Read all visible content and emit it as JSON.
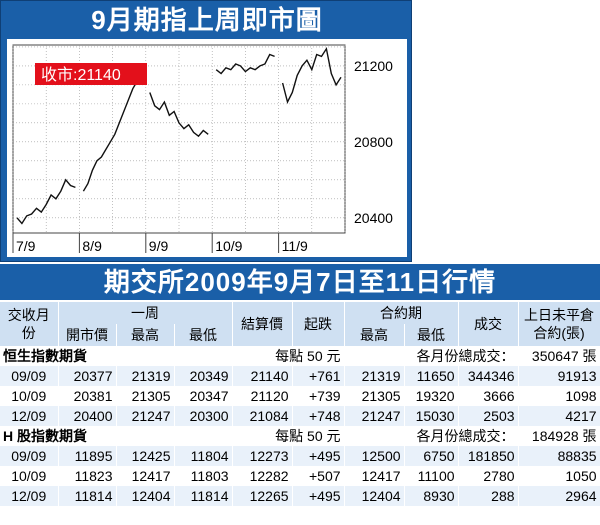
{
  "chart": {
    "title": "9月期指上周即市圖",
    "close_label": "收市:21140"
  },
  "chart_data": {
    "type": "line",
    "title": "9月期指上周即市圖",
    "x_tick_labels": [
      "7/9",
      "8/9",
      "9/9",
      "10/9",
      "11/9"
    ],
    "y_ticks": [
      20400,
      20800,
      21200
    ],
    "ylim": [
      20320,
      21310
    ],
    "annotation": "收市:21140",
    "sessions": [
      {
        "label": "7/9",
        "values": [
          20400,
          20370,
          20410,
          20420,
          20450,
          20430,
          20470,
          20520,
          20500,
          20540,
          20600,
          20570,
          20560
        ]
      },
      {
        "label": "8/9",
        "values": [
          20540,
          20580,
          20650,
          20700,
          20720,
          20760,
          20800,
          20840,
          20900,
          20960,
          21020,
          21080,
          21120,
          21180
        ]
      },
      {
        "label": "9/9",
        "values": [
          21060,
          20990,
          20970,
          21010,
          20940,
          20960,
          20900,
          20870,
          20890,
          20850,
          20830,
          20860,
          20840
        ]
      },
      {
        "label": "10/9",
        "values": [
          21180,
          21160,
          21190,
          21180,
          21210,
          21200,
          21170,
          21190,
          21180,
          21200,
          21210,
          21260,
          21250
        ]
      },
      {
        "label": "11/9",
        "values": [
          21110,
          21010,
          21060,
          21150,
          21200,
          21230,
          21180,
          21260,
          21250,
          21290,
          21160,
          21100,
          21140
        ]
      }
    ]
  },
  "table": {
    "title": "期交所2009年9月7日至11日行情",
    "headers_top": {
      "month": "交收月份",
      "week": "一周",
      "settle": "結算價",
      "change": "起跌",
      "oi_group": "合約期",
      "volume": "成交",
      "prev_oi": "上日未平倉合約(張)"
    },
    "headers_bottom": {
      "open": "開市價",
      "high": "最高",
      "low": "最低",
      "oi_high": "最高",
      "oi_low": "最低"
    },
    "sections": [
      {
        "name": "恒生指數期貨",
        "point_value": "每點 50 元",
        "total_label": "各月份總成交：",
        "total": "350647 張",
        "rows": [
          {
            "month": "09/09",
            "open": "20377",
            "high": "21319",
            "low": "20349",
            "settle": "21140",
            "change": "+761",
            "c_high": "21319",
            "c_low": "11650",
            "volume": "344346",
            "oi": "91913"
          },
          {
            "month": "10/09",
            "open": "20381",
            "high": "21305",
            "low": "20347",
            "settle": "21120",
            "change": "+739",
            "c_high": "21305",
            "c_low": "19320",
            "volume": "3666",
            "oi": "1098"
          },
          {
            "month": "12/09",
            "open": "20400",
            "high": "21247",
            "low": "20300",
            "settle": "21084",
            "change": "+748",
            "c_high": "21247",
            "c_low": "15030",
            "volume": "2503",
            "oi": "4217"
          }
        ]
      },
      {
        "name": "H 股指數期貨",
        "point_value": "每點 50 元",
        "total_label": "各月份總成交：",
        "total": "184928 張",
        "rows": [
          {
            "month": "09/09",
            "open": "11895",
            "high": "12425",
            "low": "11804",
            "settle": "12273",
            "change": "+495",
            "c_high": "12500",
            "c_low": "6750",
            "volume": "181850",
            "oi": "88835"
          },
          {
            "month": "10/09",
            "open": "11823",
            "high": "12417",
            "low": "11803",
            "settle": "12282",
            "change": "+507",
            "c_high": "12417",
            "c_low": "11100",
            "volume": "2780",
            "oi": "1050"
          },
          {
            "month": "12/09",
            "open": "11814",
            "high": "12404",
            "low": "11814",
            "settle": "12265",
            "change": "+495",
            "c_high": "12404",
            "c_low": "8930",
            "volume": "288",
            "oi": "2964"
          }
        ]
      }
    ]
  }
}
